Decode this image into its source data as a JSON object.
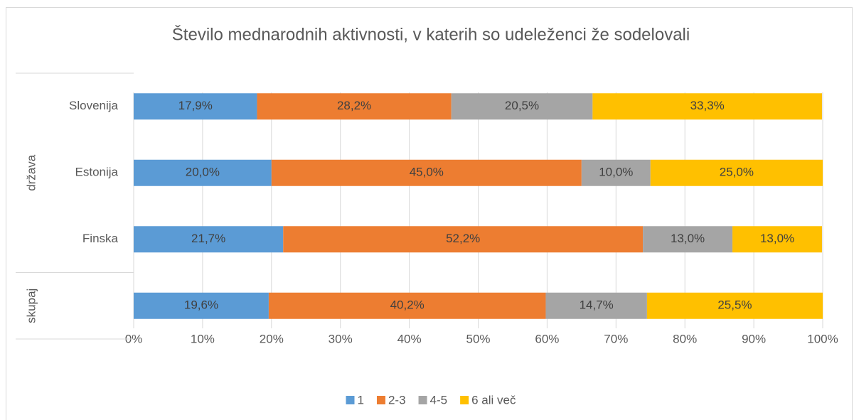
{
  "chart_data": {
    "type": "stacked_bar_horizontal",
    "title": "Število mednarodnih aktivnosti, v katerih so udeleženci že sodelovali",
    "categories": [
      "Slovenija",
      "Estonija",
      "Finska",
      null
    ],
    "group_labels": [
      "država",
      "skupaj"
    ],
    "group_sizes": [
      3,
      1
    ],
    "series": [
      {
        "name": "1",
        "color": "#5b9bd5",
        "values": [
          17.9,
          20.0,
          21.7,
          19.6
        ],
        "value_labels": [
          "17,9%",
          "20,0%",
          "21,7%",
          "19,6%"
        ]
      },
      {
        "name": "2-3",
        "color": "#ed7d31",
        "values": [
          28.2,
          45.0,
          52.2,
          40.2
        ],
        "value_labels": [
          "28,2%",
          "45,0%",
          "52,2%",
          "40,2%"
        ]
      },
      {
        "name": "4-5",
        "color": "#a5a5a5",
        "values": [
          20.5,
          10.0,
          13.0,
          14.7
        ],
        "value_labels": [
          "20,5%",
          "10,0%",
          "13,0%",
          "14,7%"
        ]
      },
      {
        "name": "6 ali več",
        "color": "#ffc000",
        "values": [
          33.3,
          25.0,
          13.0,
          25.5
        ],
        "value_labels": [
          "33,3%",
          "25,0%",
          "13,0%",
          "25,5%"
        ]
      }
    ],
    "xlim": [
      0,
      100
    ],
    "xticks": [
      {
        "value": 0,
        "label": "0%"
      },
      {
        "value": 10,
        "label": "10%"
      },
      {
        "value": 20,
        "label": "20%"
      },
      {
        "value": 30,
        "label": "30%"
      },
      {
        "value": 40,
        "label": "40%"
      },
      {
        "value": 50,
        "label": "50%"
      },
      {
        "value": 60,
        "label": "60%"
      },
      {
        "value": 70,
        "label": "70%"
      },
      {
        "value": 80,
        "label": "80%"
      },
      {
        "value": 90,
        "label": "90%"
      },
      {
        "value": 100,
        "label": "100%"
      }
    ],
    "grid": true,
    "legend": "bottom"
  }
}
